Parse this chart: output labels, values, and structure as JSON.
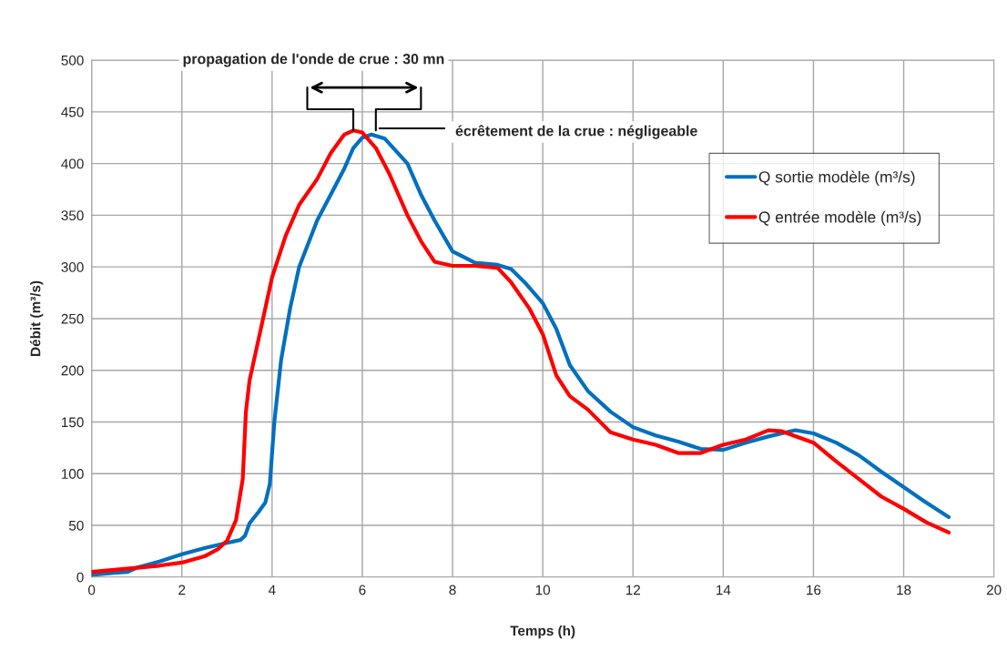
{
  "chart_data": {
    "type": "line",
    "xlabel": "Temps (h)",
    "ylabel": "Débit (m³/s)",
    "xlim": [
      0,
      20
    ],
    "xticks": [
      0,
      2,
      4,
      6,
      8,
      10,
      12,
      14,
      16,
      18,
      20
    ],
    "ylim": [
      0,
      500
    ],
    "yticks": [
      0,
      50,
      100,
      150,
      200,
      250,
      300,
      350,
      400,
      450,
      500
    ],
    "grid": true,
    "legend": "top right",
    "marker": "none",
    "line_style": "solid",
    "annotations": [
      "propagation de l'onde de crue : 30 mn",
      "écrêtement de la crue : négligeable"
    ],
    "series": [
      {
        "name": "Q sortie modèle (m³/s)",
        "color": "#0070c0",
        "x": [
          0,
          0.5,
          0.8,
          1,
          1.5,
          2,
          2.5,
          3,
          3.3,
          3.4,
          3.5,
          3.7,
          3.85,
          3.95,
          4.05,
          4.2,
          4.4,
          4.6,
          5,
          5.3,
          5.6,
          5.8,
          6,
          6.2,
          6.5,
          7,
          7.3,
          7.6,
          8,
          8.5,
          9,
          9.3,
          9.6,
          10,
          10.3,
          10.6,
          11,
          11.5,
          12,
          12.5,
          13,
          13.5,
          14,
          14.5,
          15,
          15.6,
          16,
          16.5,
          17,
          17.5,
          18,
          18.5,
          19
        ],
        "values": [
          2,
          4,
          5,
          9,
          15,
          22,
          28,
          33,
          36,
          40,
          52,
          63,
          72,
          90,
          150,
          210,
          260,
          300,
          345,
          370,
          395,
          415,
          425,
          428,
          424,
          400,
          370,
          345,
          315,
          304,
          302,
          298,
          285,
          265,
          240,
          205,
          180,
          160,
          145,
          137,
          131,
          124,
          123,
          130,
          136,
          142,
          139,
          130,
          118,
          102,
          87,
          72,
          58
        ]
      },
      {
        "name": "Q entrée modèle (m³/s)",
        "color": "#ff0000",
        "x": [
          0,
          0.5,
          1,
          1.5,
          2,
          2.5,
          2.8,
          3,
          3.2,
          3.35,
          3.42,
          3.5,
          3.7,
          3.9,
          4,
          4.3,
          4.6,
          5,
          5.3,
          5.6,
          5.8,
          6,
          6.3,
          6.6,
          7,
          7.3,
          7.6,
          8,
          8.5,
          9,
          9.3,
          9.7,
          10,
          10.3,
          10.6,
          11,
          11.5,
          12,
          12.5,
          13,
          13.5,
          14,
          14.5,
          15,
          15.3,
          16,
          16.5,
          17,
          17.5,
          18,
          18.5,
          19
        ],
        "values": [
          5,
          7,
          9,
          11,
          14,
          20,
          27,
          35,
          55,
          95,
          160,
          190,
          230,
          270,
          290,
          330,
          360,
          385,
          410,
          428,
          432,
          430,
          415,
          390,
          350,
          325,
          305,
          301,
          301,
          299,
          285,
          260,
          235,
          195,
          175,
          162,
          140,
          133,
          128,
          120,
          120,
          128,
          133,
          142,
          141,
          130,
          112,
          95,
          78,
          66,
          53,
          43
        ]
      }
    ]
  }
}
